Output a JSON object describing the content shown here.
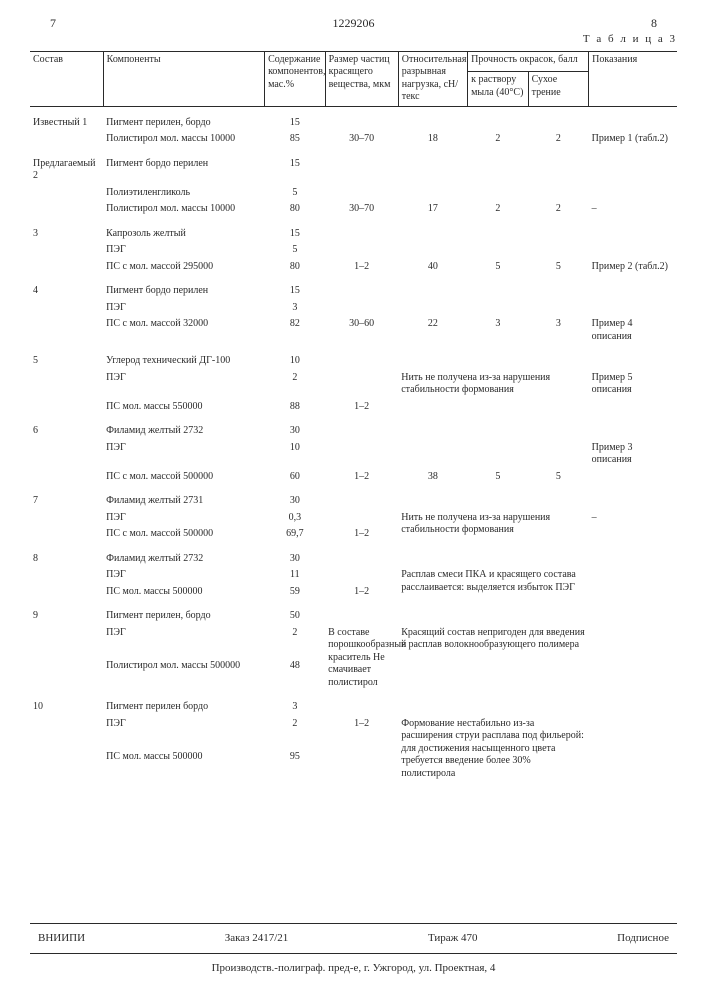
{
  "page": {
    "left_num": "7",
    "doc_num": "1229206",
    "right_num": "8",
    "table_label": "Т а б л и ц а 3"
  },
  "head": {
    "c1": "Состав",
    "c2": "Компоненты",
    "c3": "Содержание компонентов, мас.%",
    "c4": "Размер частиц красящего вещества, мкм",
    "c5": "Относительная разрывная нагрузка, сН/текс",
    "c6": "Прочность окрасок, балл",
    "c6a": "к раствору мыла (40°С)",
    "c6b": "Сухое трение",
    "c7": "Показания"
  },
  "rows": [
    {
      "sostav": "Известный 1",
      "components": [
        {
          "name": "Пигмент перилен, бордо",
          "pct": "15"
        },
        {
          "name": "Полистирол мол. массы 10000",
          "pct": "85",
          "size": "30–70",
          "load": "18",
          "soap": "2",
          "dry": "2",
          "pokaz": "Пример 1 (табл.2)"
        }
      ]
    },
    {
      "sostav": "Предлагаемый 2",
      "components": [
        {
          "name": "Пигмент бордо перилен",
          "pct": "15"
        },
        {
          "name": "Полиэтиленгликоль",
          "pct": "5"
        },
        {
          "name": "Полистирол мол. массы 10000",
          "pct": "80",
          "size": "30–70",
          "load": "17",
          "soap": "2",
          "dry": "2",
          "pokaz": "–"
        }
      ]
    },
    {
      "sostav": "3",
      "components": [
        {
          "name": "Капрозоль желтый",
          "pct": "15"
        },
        {
          "name": "ПЭГ",
          "pct": "5"
        },
        {
          "name": "ПС с мол. массой 295000",
          "pct": "80",
          "size": "1–2",
          "load": "40",
          "soap": "5",
          "dry": "5",
          "pokaz": "Пример 2 (табл.2)"
        }
      ]
    },
    {
      "sostav": "4",
      "components": [
        {
          "name": "Пигмент бордо перилен",
          "pct": "15"
        },
        {
          "name": "ПЭГ",
          "pct": "3"
        },
        {
          "name": "ПС с мол. массой 32000",
          "pct": "82",
          "size": "30–60",
          "load": "22",
          "soap": "3",
          "dry": "3",
          "pokaz": "Пример 4 описания"
        }
      ]
    },
    {
      "sostav": "5",
      "components": [
        {
          "name": "Углерод технический ДГ-100",
          "pct": "10"
        },
        {
          "name": "ПЭГ",
          "pct": "2",
          "note": "Нить не получена из-за нарушения стабильности формования",
          "pokaz": "Пример 5 описания"
        },
        {
          "name": "ПС мол. массы 550000",
          "pct": "88",
          "size": "1–2"
        }
      ]
    },
    {
      "sostav": "6",
      "components": [
        {
          "name": "Филамид желтый 2732",
          "pct": "30"
        },
        {
          "name": "ПЭГ",
          "pct": "10",
          "pokaz": "Пример 3 описания"
        },
        {
          "name": "ПС с мол. массой 500000",
          "pct": "60",
          "size": "1–2",
          "load": "38",
          "soap": "5",
          "dry": "5"
        }
      ]
    },
    {
      "sostav": "7",
      "components": [
        {
          "name": "Филамид желтый 2731",
          "pct": "30"
        },
        {
          "name": "ПЭГ",
          "pct": "0,3",
          "note": "Нить не получена из-за нарушения стабильности формования",
          "pokaz": "–"
        },
        {
          "name": "ПС с мол. массой 500000",
          "pct": "69,7",
          "size": "1–2"
        }
      ]
    },
    {
      "sostav": "8",
      "components": [
        {
          "name": "Филамид желтый 2732",
          "pct": "30"
        },
        {
          "name": "ПЭГ",
          "pct": "11",
          "note": "Расплав смеси ПКА и красящего состава расслаивается: выделяется избыток ПЭГ"
        },
        {
          "name": "ПС мол. массы 500000",
          "pct": "59",
          "size": "1–2"
        }
      ]
    },
    {
      "sostav": "9",
      "components": [
        {
          "name": "Пигмент перилен, бордо",
          "pct": "50"
        },
        {
          "name": "ПЭГ",
          "pct": "2",
          "size_note": "В составе порошкообразный краситель Не смачивает полистирол",
          "note": "Красящий состав непригоден для введения в расплав волокнообразующего полимера"
        },
        {
          "name": "Полистирол мол. массы 500000",
          "pct": "48"
        }
      ]
    },
    {
      "sostav": "10",
      "components": [
        {
          "name": "Пигмент перилен бордо",
          "pct": "3"
        },
        {
          "name": "ПЭГ",
          "pct": "2",
          "size": "1–2",
          "note": "Формование нестабильно из-за расширения струи расплава под фильерой: для достижения насыщенного цвета требуется введение более 30% полистирола"
        },
        {
          "name": "ПС мол. массы 500000",
          "pct": "95"
        }
      ]
    }
  ],
  "footer": {
    "org": "ВНИИПИ",
    "zakaz": "Заказ 2417/21",
    "tirazh": "Тираж 470",
    "podpis": "Подписное",
    "addr": "Производств.-полиграф. пред-е, г. Ужгород, ул. Проектная, 4"
  }
}
